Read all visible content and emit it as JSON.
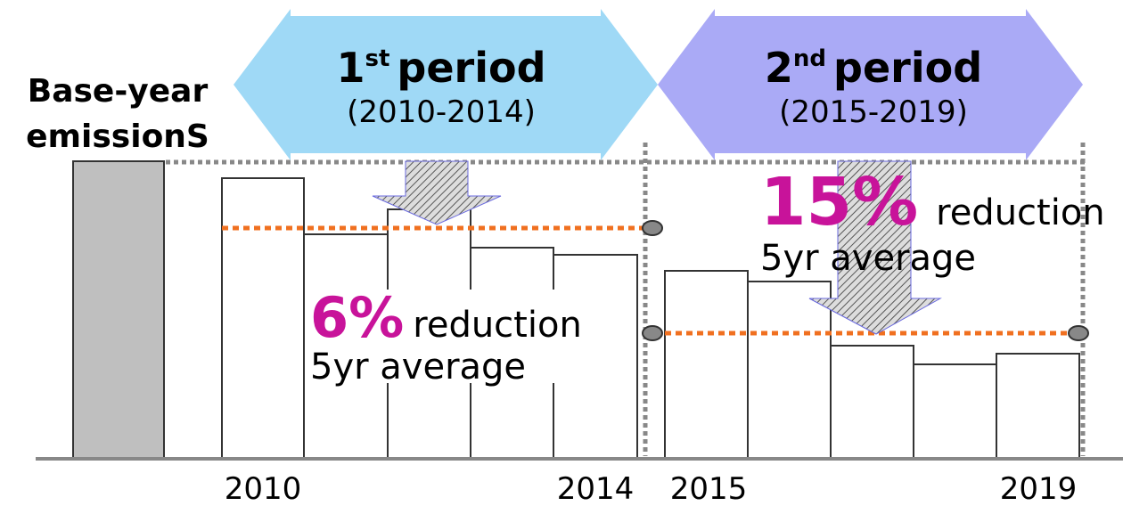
{
  "base_label": [
    "Base-year",
    "emissionS"
  ],
  "periods": [
    {
      "number": "1",
      "ordinal": "st",
      "word": "period",
      "range": "(2010-2014)"
    },
    {
      "number": "2",
      "ordinal": "nd",
      "word": "period",
      "range": "(2015-2019)"
    }
  ],
  "reductions": [
    {
      "percent": "6%",
      "word": "reduction",
      "note": "5yr average"
    },
    {
      "percent": "15%",
      "word": "reduction",
      "note": "5yr average"
    }
  ],
  "years": [
    "2010",
    "2014",
    "2015",
    "2019"
  ]
}
